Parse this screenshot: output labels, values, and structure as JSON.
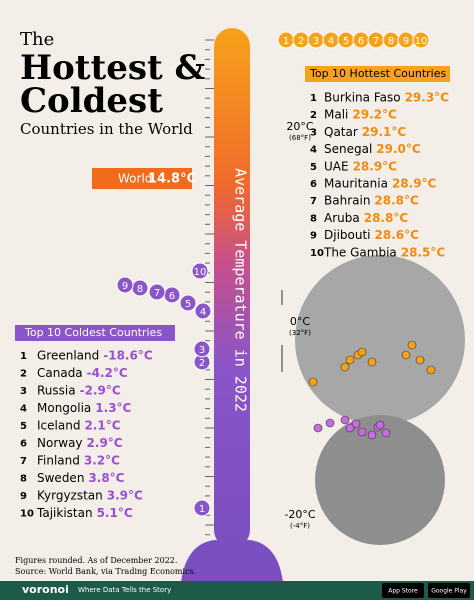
{
  "header": {
    "intro": "The",
    "title": [
      "Hottest &",
      "Coldest"
    ],
    "subtitle": "Countries in the World"
  },
  "world": {
    "label": "World",
    "value": "14.8°C"
  },
  "axis_label": "Average Temperature in 2022",
  "scale": [
    {
      "c": "20°C",
      "f": "(68°F)"
    },
    {
      "c": "0°C",
      "f": "(32°F)"
    },
    {
      "c": "-20°C",
      "f": "(-4°F)"
    }
  ],
  "hottest": {
    "title": "Top 10 Hottest Countries",
    "rows": [
      {
        "rank": "1",
        "country": "Burkina Faso",
        "temp": "29.3°C"
      },
      {
        "rank": "2",
        "country": "Mali",
        "temp": "29.2°C"
      },
      {
        "rank": "3",
        "country": "Qatar",
        "temp": "29.1°C"
      },
      {
        "rank": "4",
        "country": "Senegal",
        "temp": "29.0°C"
      },
      {
        "rank": "5",
        "country": "UAE",
        "temp": "28.9°C"
      },
      {
        "rank": "6",
        "country": "Mauritania",
        "temp": "28.9°C"
      },
      {
        "rank": "7",
        "country": "Bahrain",
        "temp": "28.8°C"
      },
      {
        "rank": "8",
        "country": "Aruba",
        "temp": "28.8°C"
      },
      {
        "rank": "9",
        "country": "Djibouti",
        "temp": "28.6°C"
      },
      {
        "rank": "10",
        "country": "The Gambia",
        "temp": "28.5°C"
      }
    ]
  },
  "coldest": {
    "title": "Top 10 Coldest Countries",
    "rows": [
      {
        "rank": "1",
        "country": "Greenland",
        "temp": "-18.6°C"
      },
      {
        "rank": "2",
        "country": "Canada",
        "temp": "-4.2°C"
      },
      {
        "rank": "3",
        "country": "Russia",
        "temp": "-2.9°C"
      },
      {
        "rank": "4",
        "country": "Mongolia",
        "temp": "1.3°C"
      },
      {
        "rank": "5",
        "country": "Iceland",
        "temp": "2.1°C"
      },
      {
        "rank": "6",
        "country": "Norway",
        "temp": "2.9°C"
      },
      {
        "rank": "7",
        "country": "Finland",
        "temp": "3.2°C"
      },
      {
        "rank": "8",
        "country": "Sweden",
        "temp": "3.8°C"
      },
      {
        "rank": "9",
        "country": "Kyrgyzstan",
        "temp": "3.9°C"
      },
      {
        "rank": "10",
        "country": "Tajikistan",
        "temp": "5.1°C"
      }
    ]
  },
  "footer": {
    "note": "Figures rounded. As of December 2022.",
    "source": "Source: World Bank, via Trading Economics.",
    "brand": "voronoi",
    "tagline": "Where Data Tells the Story",
    "store1": "App Store",
    "store2": "Google Play"
  }
}
